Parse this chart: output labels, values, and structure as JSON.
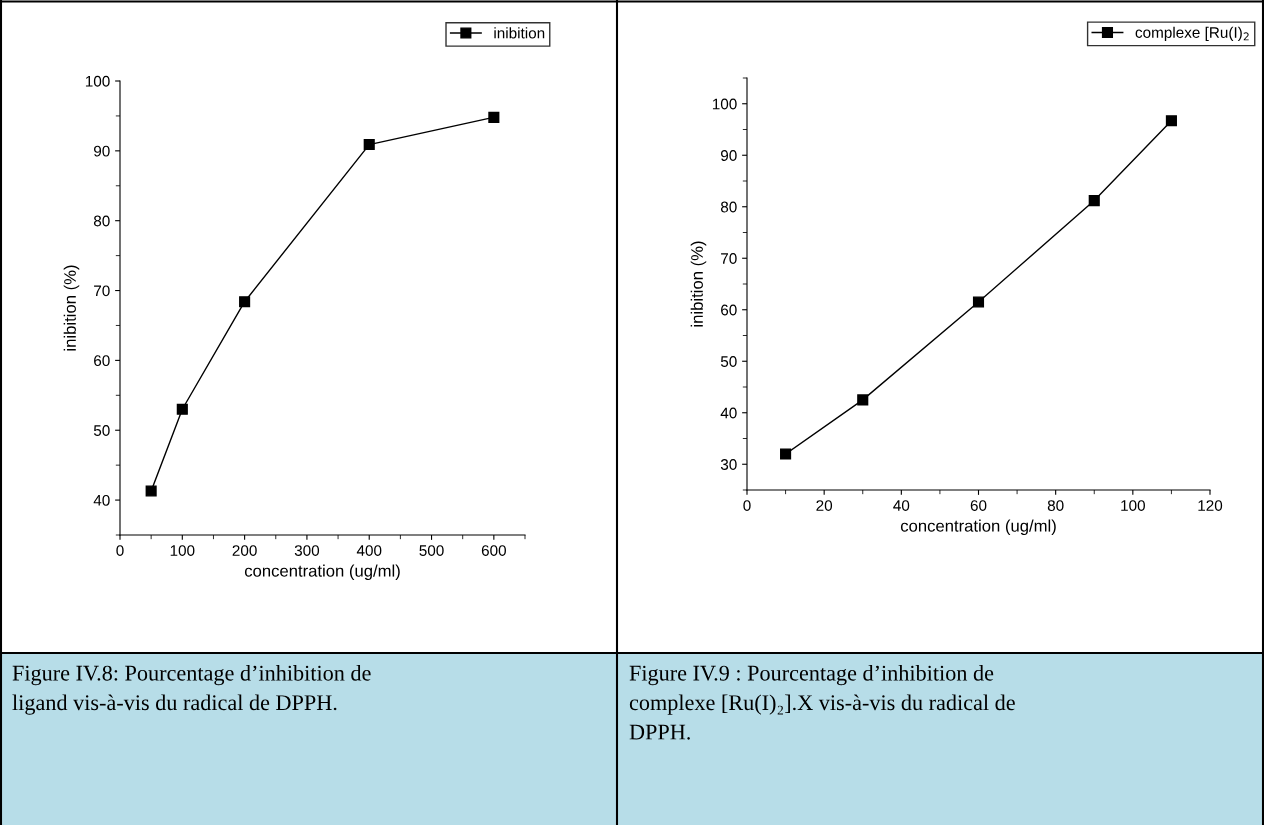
{
  "chart_data": [
    {
      "type": "line",
      "xlabel": "concentration (ug/ml)",
      "ylabel": "inibition (%)",
      "x": [
        50,
        100,
        200,
        400,
        600
      ],
      "series": [
        {
          "name": "inibition",
          "color": "#000000",
          "values": [
            41.3,
            53.0,
            68.4,
            90.9,
            94.8
          ]
        }
      ],
      "xlim": [
        0,
        650
      ],
      "xticks": [
        0,
        100,
        200,
        300,
        400,
        500,
        600
      ],
      "ylim": [
        35,
        100
      ],
      "yticks": [
        40,
        50,
        60,
        70,
        80,
        90,
        100
      ],
      "marker": "square",
      "line_style": "solid",
      "legend": "top right",
      "annotations": [
        "Figure IV.8: Pourcentage d’inhibition de\nligand vis-à-vis du radical de DPPH."
      ]
    },
    {
      "type": "line",
      "xlabel": "concentration (ug/ml)",
      "ylabel": "inibition (%)",
      "x": [
        10,
        30,
        60,
        90,
        110
      ],
      "series": [
        {
          "name": "complexe [Ru(I)$_{2}$",
          "color": "#000000",
          "values": [
            32.0,
            42.5,
            61.5,
            81.2,
            96.7
          ]
        }
      ],
      "xlim": [
        0,
        120
      ],
      "xticks": [
        0,
        20,
        40,
        60,
        80,
        100,
        120
      ],
      "ylim": [
        25,
        105
      ],
      "yticks": [
        30,
        40,
        50,
        60,
        70,
        80,
        90,
        100
      ],
      "marker": "square",
      "line_style": "solid",
      "legend": "top right",
      "annotations": [
        "Figure IV.9 : Pourcentage d’inhibition de\ncomplexe [Ru(I)₂].X vis-à-vis du radical de\nDPPH."
      ]
    }
  ]
}
